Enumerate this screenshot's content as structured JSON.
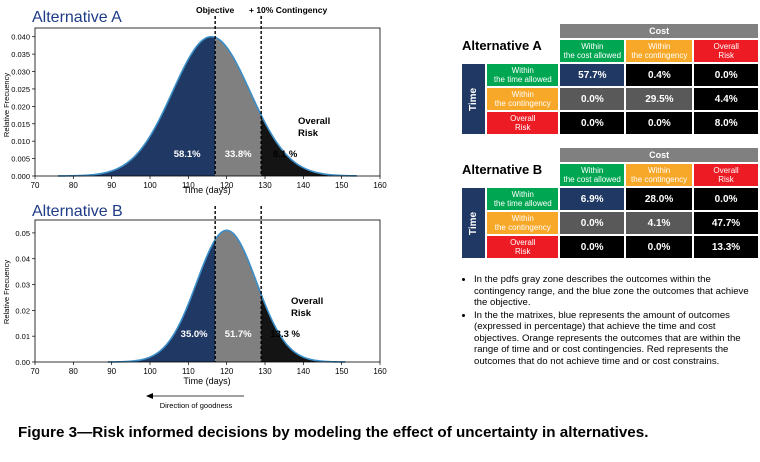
{
  "chart_data": [
    {
      "type": "area",
      "title": "Alternative A",
      "xlabel": "Time (days)",
      "ylabel": "Relative Frecuency",
      "xlim": [
        70,
        160
      ],
      "ylim": [
        0,
        0.0425
      ],
      "x_ticks": [
        "70",
        "80",
        "90",
        "100",
        "110",
        "120",
        "130",
        "140",
        "150",
        "160"
      ],
      "y_ticks": [
        "0.000",
        "0.005",
        "0.010",
        "0.015",
        "0.020",
        "0.025",
        "0.030",
        "0.035",
        "0.040"
      ],
      "distribution": {
        "mean": 116,
        "sd": 10.1,
        "peak": 0.04,
        "x_min": 76,
        "x_max": 154
      },
      "objective": 117,
      "contingency": 129,
      "zone_labels": [
        "58.1%",
        "33.8%",
        "8.1 %"
      ],
      "risk_label": "Overall Risk",
      "annotations": [
        "Objective",
        "+ 10% Contingency"
      ],
      "grid": false,
      "colors": {
        "objective_zone": "#1f3864",
        "contingency_zone": "#808080",
        "risk_zone": "#141414",
        "curve": "#3b8ec7"
      }
    },
    {
      "type": "area",
      "title": "Alternative B",
      "xlabel": "Time (days)",
      "ylabel": "Relative Frecuency",
      "xlim": [
        70,
        160
      ],
      "ylim": [
        0,
        0.055
      ],
      "x_ticks": [
        "70",
        "80",
        "90",
        "100",
        "110",
        "120",
        "130",
        "140",
        "150",
        "160"
      ],
      "y_ticks": [
        "0.00",
        "0.01",
        "0.02",
        "0.03",
        "0.04",
        "0.05"
      ],
      "distribution": {
        "mean": 120,
        "sd": 7.8,
        "peak": 0.051,
        "x_min": 89,
        "x_max": 151
      },
      "objective": 117,
      "contingency": 129,
      "zone_labels": [
        "35.0%",
        "51.7%",
        "13.3 %"
      ],
      "risk_label": "Overall Risk",
      "annotations": [
        "Direction of goodness"
      ],
      "grid": false,
      "colors": {
        "objective_zone": "#1f3864",
        "contingency_zone": "#808080",
        "risk_zone": "#141414",
        "curve": "#3b8ec7"
      }
    },
    {
      "type": "table",
      "title": "Alternative A",
      "group_header": "Cost",
      "side_header": "Time",
      "columns": [
        {
          "label1": "Within",
          "label2": "the cost allowed",
          "color": "#00a651"
        },
        {
          "label1": "Within",
          "label2": "the contingency",
          "color": "#f7a829"
        },
        {
          "label1": "Overall",
          "label2": "Risk",
          "color": "#ed1c24"
        }
      ],
      "rows": [
        {
          "label1": "Within",
          "label2": "the time allowed",
          "color": "#00a651"
        },
        {
          "label1": "Within",
          "label2": "the contingency",
          "color": "#f7a829"
        },
        {
          "label1": "Overall",
          "label2": "Risk",
          "color": "#ed1c24"
        }
      ],
      "values": [
        [
          "57.7%",
          "0.4%",
          "0.0%"
        ],
        [
          "0.0%",
          "29.5%",
          "4.4%"
        ],
        [
          "0.0%",
          "0.0%",
          "8.0%"
        ]
      ],
      "cell_colors": [
        [
          "#1f3864",
          "#000000",
          "#000000"
        ],
        [
          "#595959",
          "#595959",
          "#000000"
        ],
        [
          "#000000",
          "#000000",
          "#000000"
        ]
      ]
    },
    {
      "type": "table",
      "title": "Alternative B",
      "group_header": "Cost",
      "side_header": "Time",
      "columns": [
        {
          "label1": "Within",
          "label2": "the cost allowed",
          "color": "#00a651"
        },
        {
          "label1": "Within",
          "label2": "the contingency",
          "color": "#f7a829"
        },
        {
          "label1": "Overall",
          "label2": "Risk",
          "color": "#ed1c24"
        }
      ],
      "rows": [
        {
          "label1": "Within",
          "label2": "the time allowed",
          "color": "#00a651"
        },
        {
          "label1": "Within",
          "label2": "the contingency",
          "color": "#f7a829"
        },
        {
          "label1": "Overall",
          "label2": "Risk",
          "color": "#ed1c24"
        }
      ],
      "values": [
        [
          "6.9%",
          "28.0%",
          "0.0%"
        ],
        [
          "0.0%",
          "4.1%",
          "47.7%"
        ],
        [
          "0.0%",
          "0.0%",
          "13.3%"
        ]
      ],
      "cell_colors": [
        [
          "#1f3864",
          "#000000",
          "#000000"
        ],
        [
          "#595959",
          "#595959",
          "#000000"
        ],
        [
          "#000000",
          "#000000",
          "#000000"
        ]
      ]
    }
  ],
  "notes": [
    "In the pdfs gray zone describes the outcomes within the contingency range, and the blue zone the outcomes that achieve the objective.",
    "In the the matrixes, blue represents the amount of outcomes (expressed in percentage) that achieve the time and cost objectives. Orange represents the outcomes that are within the range of time and or cost contingencies. Red represents the outcomes that do not achieve time and or cost constrains."
  ],
  "caption": "Figure 3—Risk informed decisions by modeling the effect of uncertainty in alternatives."
}
